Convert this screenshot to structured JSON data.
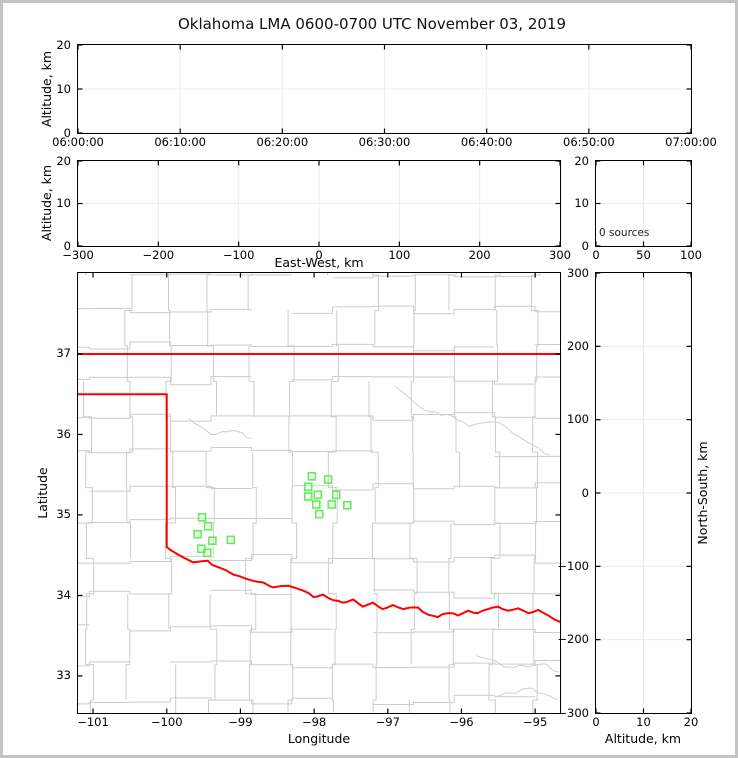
{
  "title": "Oklahoma LMA 0600-0700 UTC November 03, 2019",
  "colors": {
    "state_border": "#ff0000",
    "county_lines": "#cdcdcd",
    "rivers": "#cfcfcf",
    "stations": "#5df052",
    "grid": "#ececec",
    "spine": "#000000",
    "figure_border": "#c3c3c3"
  },
  "chart_data": [
    {
      "id": "altitude-vs-time",
      "type": "scatter",
      "xlabel": "",
      "ylabel": "Altitude, km",
      "x_axis": {
        "min": 0,
        "max": 3600,
        "ticks": [
          {
            "v": 0,
            "label": "06:00:00"
          },
          {
            "v": 600,
            "label": "06:10:00"
          },
          {
            "v": 1200,
            "label": "06:20:00"
          },
          {
            "v": 1800,
            "label": "06:30:00"
          },
          {
            "v": 2400,
            "label": "06:40:00"
          },
          {
            "v": 3000,
            "label": "06:50:00"
          },
          {
            "v": 3600,
            "label": "07:00:00"
          }
        ],
        "grid": [
          600,
          1200,
          1800,
          2400,
          3000
        ]
      },
      "y_axis": {
        "min": 0,
        "max": 20,
        "ticks": [
          {
            "v": 0,
            "label": "0"
          },
          {
            "v": 10,
            "label": "10"
          },
          {
            "v": 20,
            "label": "20"
          }
        ],
        "grid": [
          10
        ]
      },
      "series": []
    },
    {
      "id": "altitude-vs-eastwest",
      "type": "scatter",
      "xlabel": "East-West, km",
      "ylabel": "Altitude, km",
      "x_axis": {
        "min": -300,
        "max": 300,
        "ticks": [
          {
            "v": -300,
            "label": "−300"
          },
          {
            "v": -200,
            "label": "−200"
          },
          {
            "v": -100,
            "label": "−100"
          },
          {
            "v": 0,
            "label": "0"
          },
          {
            "v": 100,
            "label": "100"
          },
          {
            "v": 200,
            "label": "200"
          },
          {
            "v": 300,
            "label": "300"
          }
        ],
        "grid": [
          -200,
          -100,
          0,
          100,
          200
        ]
      },
      "y_axis": {
        "min": 0,
        "max": 20,
        "ticks": [
          {
            "v": 0,
            "label": "0"
          },
          {
            "v": 10,
            "label": "10"
          },
          {
            "v": 20,
            "label": "20"
          }
        ],
        "grid": [
          10
        ]
      },
      "series": []
    },
    {
      "id": "altitude-histogram",
      "type": "line",
      "xlabel": "",
      "ylabel": "",
      "annotation": "0 sources",
      "x_axis": {
        "min": 0,
        "max": 100,
        "ticks": [
          {
            "v": 0,
            "label": "0"
          },
          {
            "v": 50,
            "label": "50"
          },
          {
            "v": 100,
            "label": "100"
          }
        ],
        "grid": [
          50
        ]
      },
      "y_axis": {
        "min": 0,
        "max": 20,
        "ticks": [
          {
            "v": 0,
            "label": "0"
          },
          {
            "v": 10,
            "label": "10"
          },
          {
            "v": 20,
            "label": "20"
          }
        ],
        "grid": [
          10
        ]
      },
      "series": []
    },
    {
      "id": "plan-view-map",
      "type": "scatter",
      "xlabel": "Longitude",
      "ylabel": "Latitude",
      "x_axis": {
        "min": -101.204,
        "max": -94.663,
        "ticks": [
          {
            "v": -101,
            "label": "−101"
          },
          {
            "v": -100,
            "label": "−100"
          },
          {
            "v": -99,
            "label": "−99"
          },
          {
            "v": -98,
            "label": "−98"
          },
          {
            "v": -97,
            "label": "−97"
          },
          {
            "v": -96,
            "label": "−96"
          },
          {
            "v": -95,
            "label": "−95"
          }
        ],
        "grid": []
      },
      "y_axis": {
        "min": 32.539,
        "max": 38.006,
        "ticks": [
          {
            "v": 37,
            "label": "37"
          },
          {
            "v": 36,
            "label": "36"
          },
          {
            "v": 35,
            "label": "35"
          },
          {
            "v": 34,
            "label": "34"
          },
          {
            "v": 33,
            "label": "33"
          }
        ],
        "grid": []
      },
      "lma_stations_lon_lat": [
        [
          -98.03,
          35.48
        ],
        [
          -97.81,
          35.44
        ],
        [
          -98.08,
          35.35
        ],
        [
          -97.95,
          35.25
        ],
        [
          -98.08,
          35.23
        ],
        [
          -97.97,
          35.13
        ],
        [
          -97.76,
          35.13
        ],
        [
          -97.7,
          35.25
        ],
        [
          -97.55,
          35.12
        ],
        [
          -97.93,
          35.01
        ],
        [
          -99.52,
          34.97
        ],
        [
          -99.44,
          34.86
        ],
        [
          -99.58,
          34.76
        ],
        [
          -99.38,
          34.68
        ],
        [
          -99.13,
          34.69
        ],
        [
          -99.53,
          34.58
        ],
        [
          -99.45,
          34.53
        ]
      ],
      "state_border": {
        "north_lat37": [
          [
            -101.21,
            37.0
          ],
          [
            -94.66,
            37.0
          ]
        ],
        "panhandle_west_and_red_river": [
          [
            -101.21,
            36.5
          ],
          [
            -100.0,
            36.5
          ],
          [
            -100.0,
            34.6
          ],
          [
            -99.85,
            34.51
          ],
          [
            -99.64,
            34.41
          ],
          [
            -99.44,
            34.43
          ],
          [
            -99.3,
            34.35
          ],
          [
            -99.1,
            34.26
          ],
          [
            -98.9,
            34.2
          ],
          [
            -98.69,
            34.16
          ],
          [
            -98.56,
            34.1
          ],
          [
            -98.35,
            34.12
          ],
          [
            -98.15,
            34.06
          ],
          [
            -98.01,
            33.98
          ],
          [
            -97.88,
            34.01
          ],
          [
            -97.74,
            33.94
          ],
          [
            -97.61,
            33.91
          ],
          [
            -97.47,
            33.95
          ],
          [
            -97.34,
            33.86
          ],
          [
            -97.2,
            33.91
          ],
          [
            -97.07,
            33.83
          ],
          [
            -96.93,
            33.88
          ],
          [
            -96.79,
            33.83
          ],
          [
            -96.59,
            33.85
          ],
          [
            -96.45,
            33.76
          ],
          [
            -96.32,
            33.73
          ],
          [
            -96.18,
            33.78
          ],
          [
            -96.05,
            33.75
          ],
          [
            -95.91,
            33.81
          ],
          [
            -95.78,
            33.78
          ],
          [
            -95.64,
            33.83
          ],
          [
            -95.5,
            33.86
          ],
          [
            -95.37,
            33.81
          ],
          [
            -95.23,
            33.84
          ],
          [
            -95.09,
            33.78
          ],
          [
            -94.96,
            33.82
          ],
          [
            -94.82,
            33.75
          ],
          [
            -94.66,
            33.67
          ]
        ]
      }
    },
    {
      "id": "northsouth-vs-altitude",
      "type": "scatter",
      "xlabel": "Altitude, km",
      "ylabel": "North-South, km",
      "x_axis": {
        "min": 0,
        "max": 20,
        "ticks": [
          {
            "v": 0,
            "label": "0"
          },
          {
            "v": 10,
            "label": "10"
          },
          {
            "v": 20,
            "label": "20"
          }
        ],
        "grid": [
          10
        ]
      },
      "y_axis": {
        "min": -300,
        "max": 300,
        "ticks": [
          {
            "v": 300,
            "label": "300"
          },
          {
            "v": 200,
            "label": "200"
          },
          {
            "v": 100,
            "label": "100"
          },
          {
            "v": 0,
            "label": "0"
          },
          {
            "v": -100,
            "label": "−100"
          },
          {
            "v": -200,
            "label": "−200"
          },
          {
            "v": -300,
            "label": "−300"
          }
        ],
        "grid": [
          200,
          100,
          0,
          -100,
          -200
        ]
      },
      "series": []
    }
  ]
}
